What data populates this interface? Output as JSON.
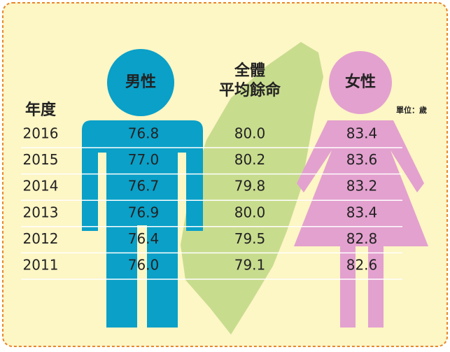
{
  "header": {
    "year": "年度",
    "male": "男性",
    "total": [
      "全體",
      "平均餘命"
    ],
    "female": "女性",
    "unit": "單位：歲"
  },
  "table": {
    "rows": [
      [
        "2016",
        "76.8",
        "80.0",
        "83.4"
      ],
      [
        "2015",
        "77.0",
        "80.2",
        "83.6"
      ],
      [
        "2014",
        "76.7",
        "79.8",
        "83.2"
      ],
      [
        "2013",
        "76.9",
        "80.0",
        "83.4"
      ],
      [
        "2012",
        "76.4",
        "79.5",
        "82.8"
      ],
      [
        "2011",
        "76.0",
        "79.1",
        "82.6"
      ]
    ]
  }
}
